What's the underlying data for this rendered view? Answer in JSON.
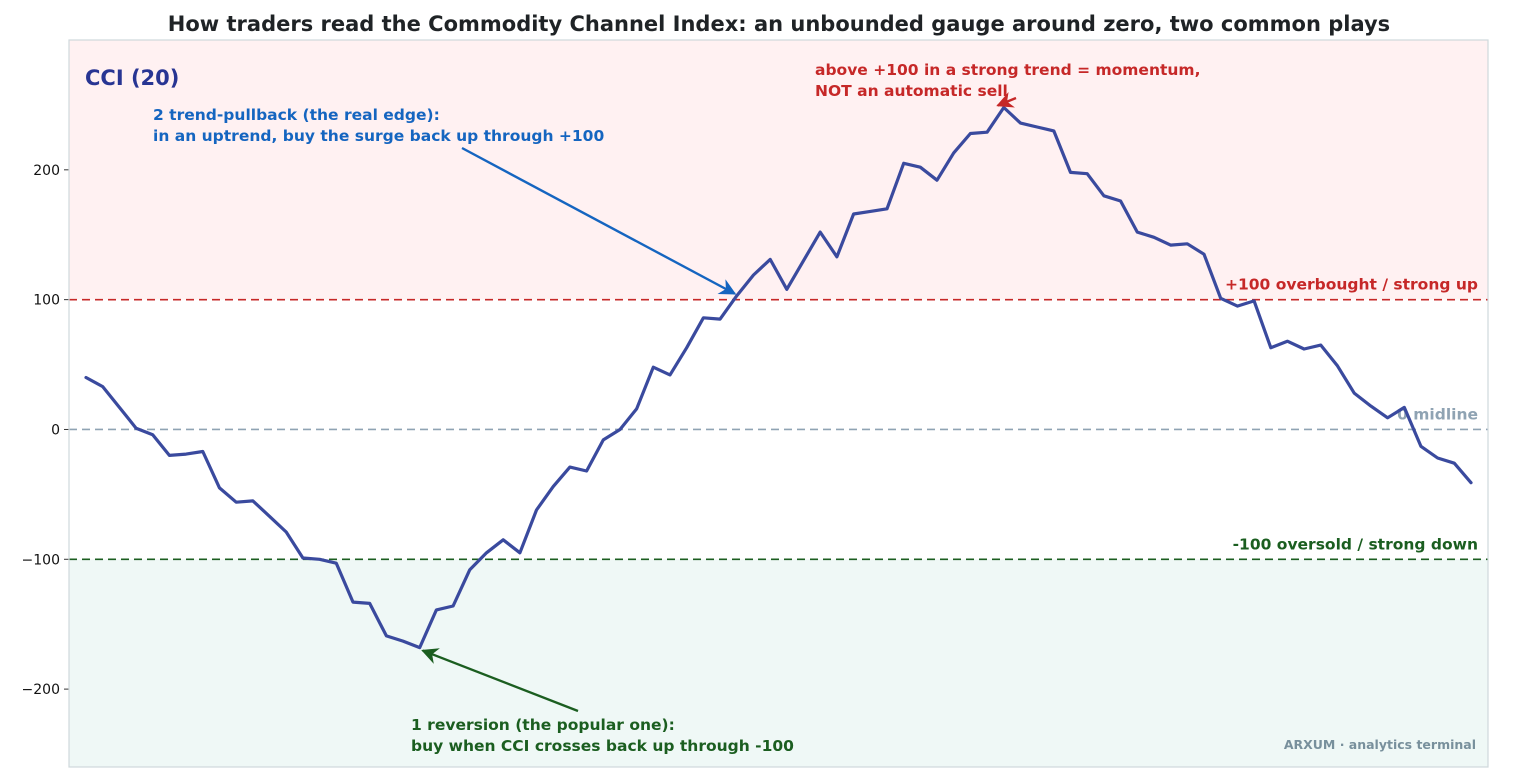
{
  "chart_data": {
    "type": "line",
    "title": "How traders read the Commodity Channel Index: an unbounded gauge around zero, two common plays",
    "panel_label": "CCI (20)",
    "xlabel": "",
    "ylabel": "",
    "ylim": [
      -260,
      300
    ],
    "yticks": [
      200,
      100,
      0,
      -100,
      -200
    ],
    "ytick_labels": [
      "200",
      "100",
      "0",
      "−100",
      "−200"
    ],
    "grid": false,
    "series": [
      {
        "name": "",
        "color": "#3a4a9e",
        "values": [
          40,
          33,
          17,
          1,
          -4,
          -20,
          -19,
          -17,
          -45,
          -56,
          -55,
          -67,
          -79,
          -99,
          -100,
          -103,
          -133,
          -134,
          -159,
          -163,
          -168,
          -139,
          -136,
          -108,
          -95,
          -85,
          -95,
          -62,
          -44,
          -29,
          -32,
          -8,
          0,
          16,
          48,
          42,
          63,
          86,
          85,
          103,
          119,
          131,
          108,
          130,
          152,
          133,
          166,
          168,
          170,
          205,
          202,
          192,
          213,
          228,
          229,
          248,
          236,
          233,
          230,
          198,
          197,
          180,
          176,
          152,
          148,
          142,
          143,
          135,
          101,
          95,
          99,
          63,
          68,
          62,
          65,
          49,
          28,
          18,
          9,
          17,
          -13,
          -22,
          -26,
          -41
        ]
      }
    ],
    "reference_lines": [
      {
        "value": 100,
        "label": "+100  overbought / strong up",
        "color": "#c62828"
      },
      {
        "value": 0,
        "label": "0  midline",
        "color": "#8fa3b3"
      },
      {
        "value": -100,
        "label": "-100  oversold / strong down",
        "color": "#1b5e20"
      }
    ],
    "zones": {
      "upper_color": "#fff1f2",
      "lower_color": "#eff8f6"
    },
    "annotations": [
      {
        "id": "pullback",
        "lines": [
          "2  trend-pullback (the real edge):",
          "in an uptrend, buy the surge back up through +100"
        ],
        "color": "#1565c0",
        "arrow_index": 39
      },
      {
        "id": "momentum",
        "lines": [
          "above +100 in a strong trend = momentum,",
          "NOT an automatic sell"
        ],
        "color": "#c62828",
        "arrow_index": 55
      },
      {
        "id": "reversion",
        "lines": [
          "1  reversion (the popular one):",
          "buy when CCI crosses back up through -100"
        ],
        "color": "#1b5e20",
        "arrow_index": 20
      }
    ],
    "watermark": "ARXUM · analytics terminal"
  }
}
